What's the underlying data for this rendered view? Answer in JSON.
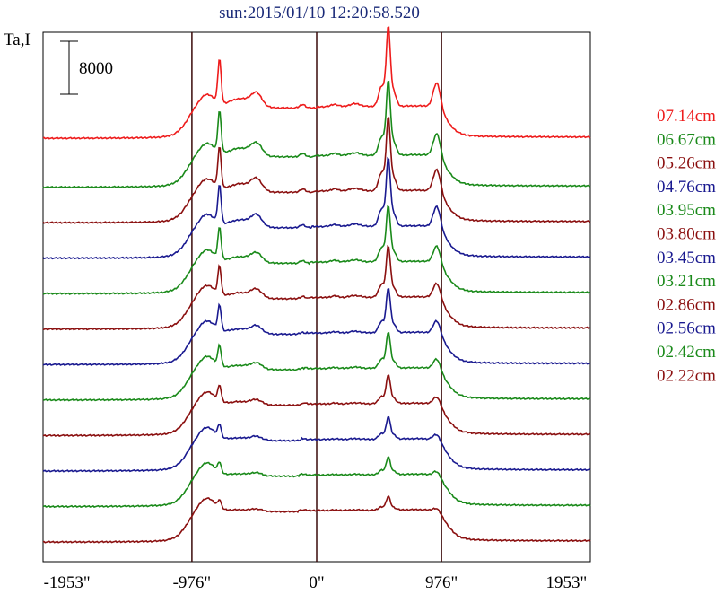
{
  "chart_data": {
    "type": "line",
    "title": "sun:2015/01/10 12:20:58.520",
    "ylabel": "Ta,I",
    "xlim": [
      -2140,
      2140
    ],
    "x_ticks": [
      {
        "value": -1953,
        "label": "-1953\""
      },
      {
        "value": -976,
        "label": "-976\""
      },
      {
        "value": 0,
        "label": "0\""
      },
      {
        "value": 976,
        "label": "976\""
      },
      {
        "value": 1953,
        "label": "1953\""
      }
    ],
    "vertical_lines": [
      -976,
      0,
      976
    ],
    "scale_bar": {
      "value": 8000,
      "label": "8000"
    },
    "series": [
      {
        "name": "07.14cm",
        "color": "#ee1c1c",
        "baseline": 73000,
        "amp": 1.0
      },
      {
        "name": "06.67cm",
        "color": "#1a8a1a",
        "baseline": 64600,
        "amp": 0.93
      },
      {
        "name": "05.26cm",
        "color": "#8b1010",
        "baseline": 58500,
        "amp": 0.92
      },
      {
        "name": "04.76cm",
        "color": "#1a1a90",
        "baseline": 52400,
        "amp": 0.86
      },
      {
        "name": "03.95cm",
        "color": "#1a8a1a",
        "baseline": 46300,
        "amp": 0.7
      },
      {
        "name": "03.80cm",
        "color": "#8b1010",
        "baseline": 40200,
        "amp": 0.64
      },
      {
        "name": "03.45cm",
        "color": "#1a1a90",
        "baseline": 34100,
        "amp": 0.56
      },
      {
        "name": "03.21cm",
        "color": "#1a8a1a",
        "baseline": 28000,
        "amp": 0.45
      },
      {
        "name": "02.86cm",
        "color": "#8b1010",
        "baseline": 21900,
        "amp": 0.36
      },
      {
        "name": "02.56cm",
        "color": "#1a1a90",
        "baseline": 15800,
        "amp": 0.28
      },
      {
        "name": "02.42cm",
        "color": "#1a8a1a",
        "baseline": 9700,
        "amp": 0.22
      },
      {
        "name": "02.22cm",
        "color": "#8b1010",
        "baseline": 3600,
        "amp": 0.17
      }
    ],
    "ylim": [
      0,
      91000
    ],
    "grid": false
  }
}
